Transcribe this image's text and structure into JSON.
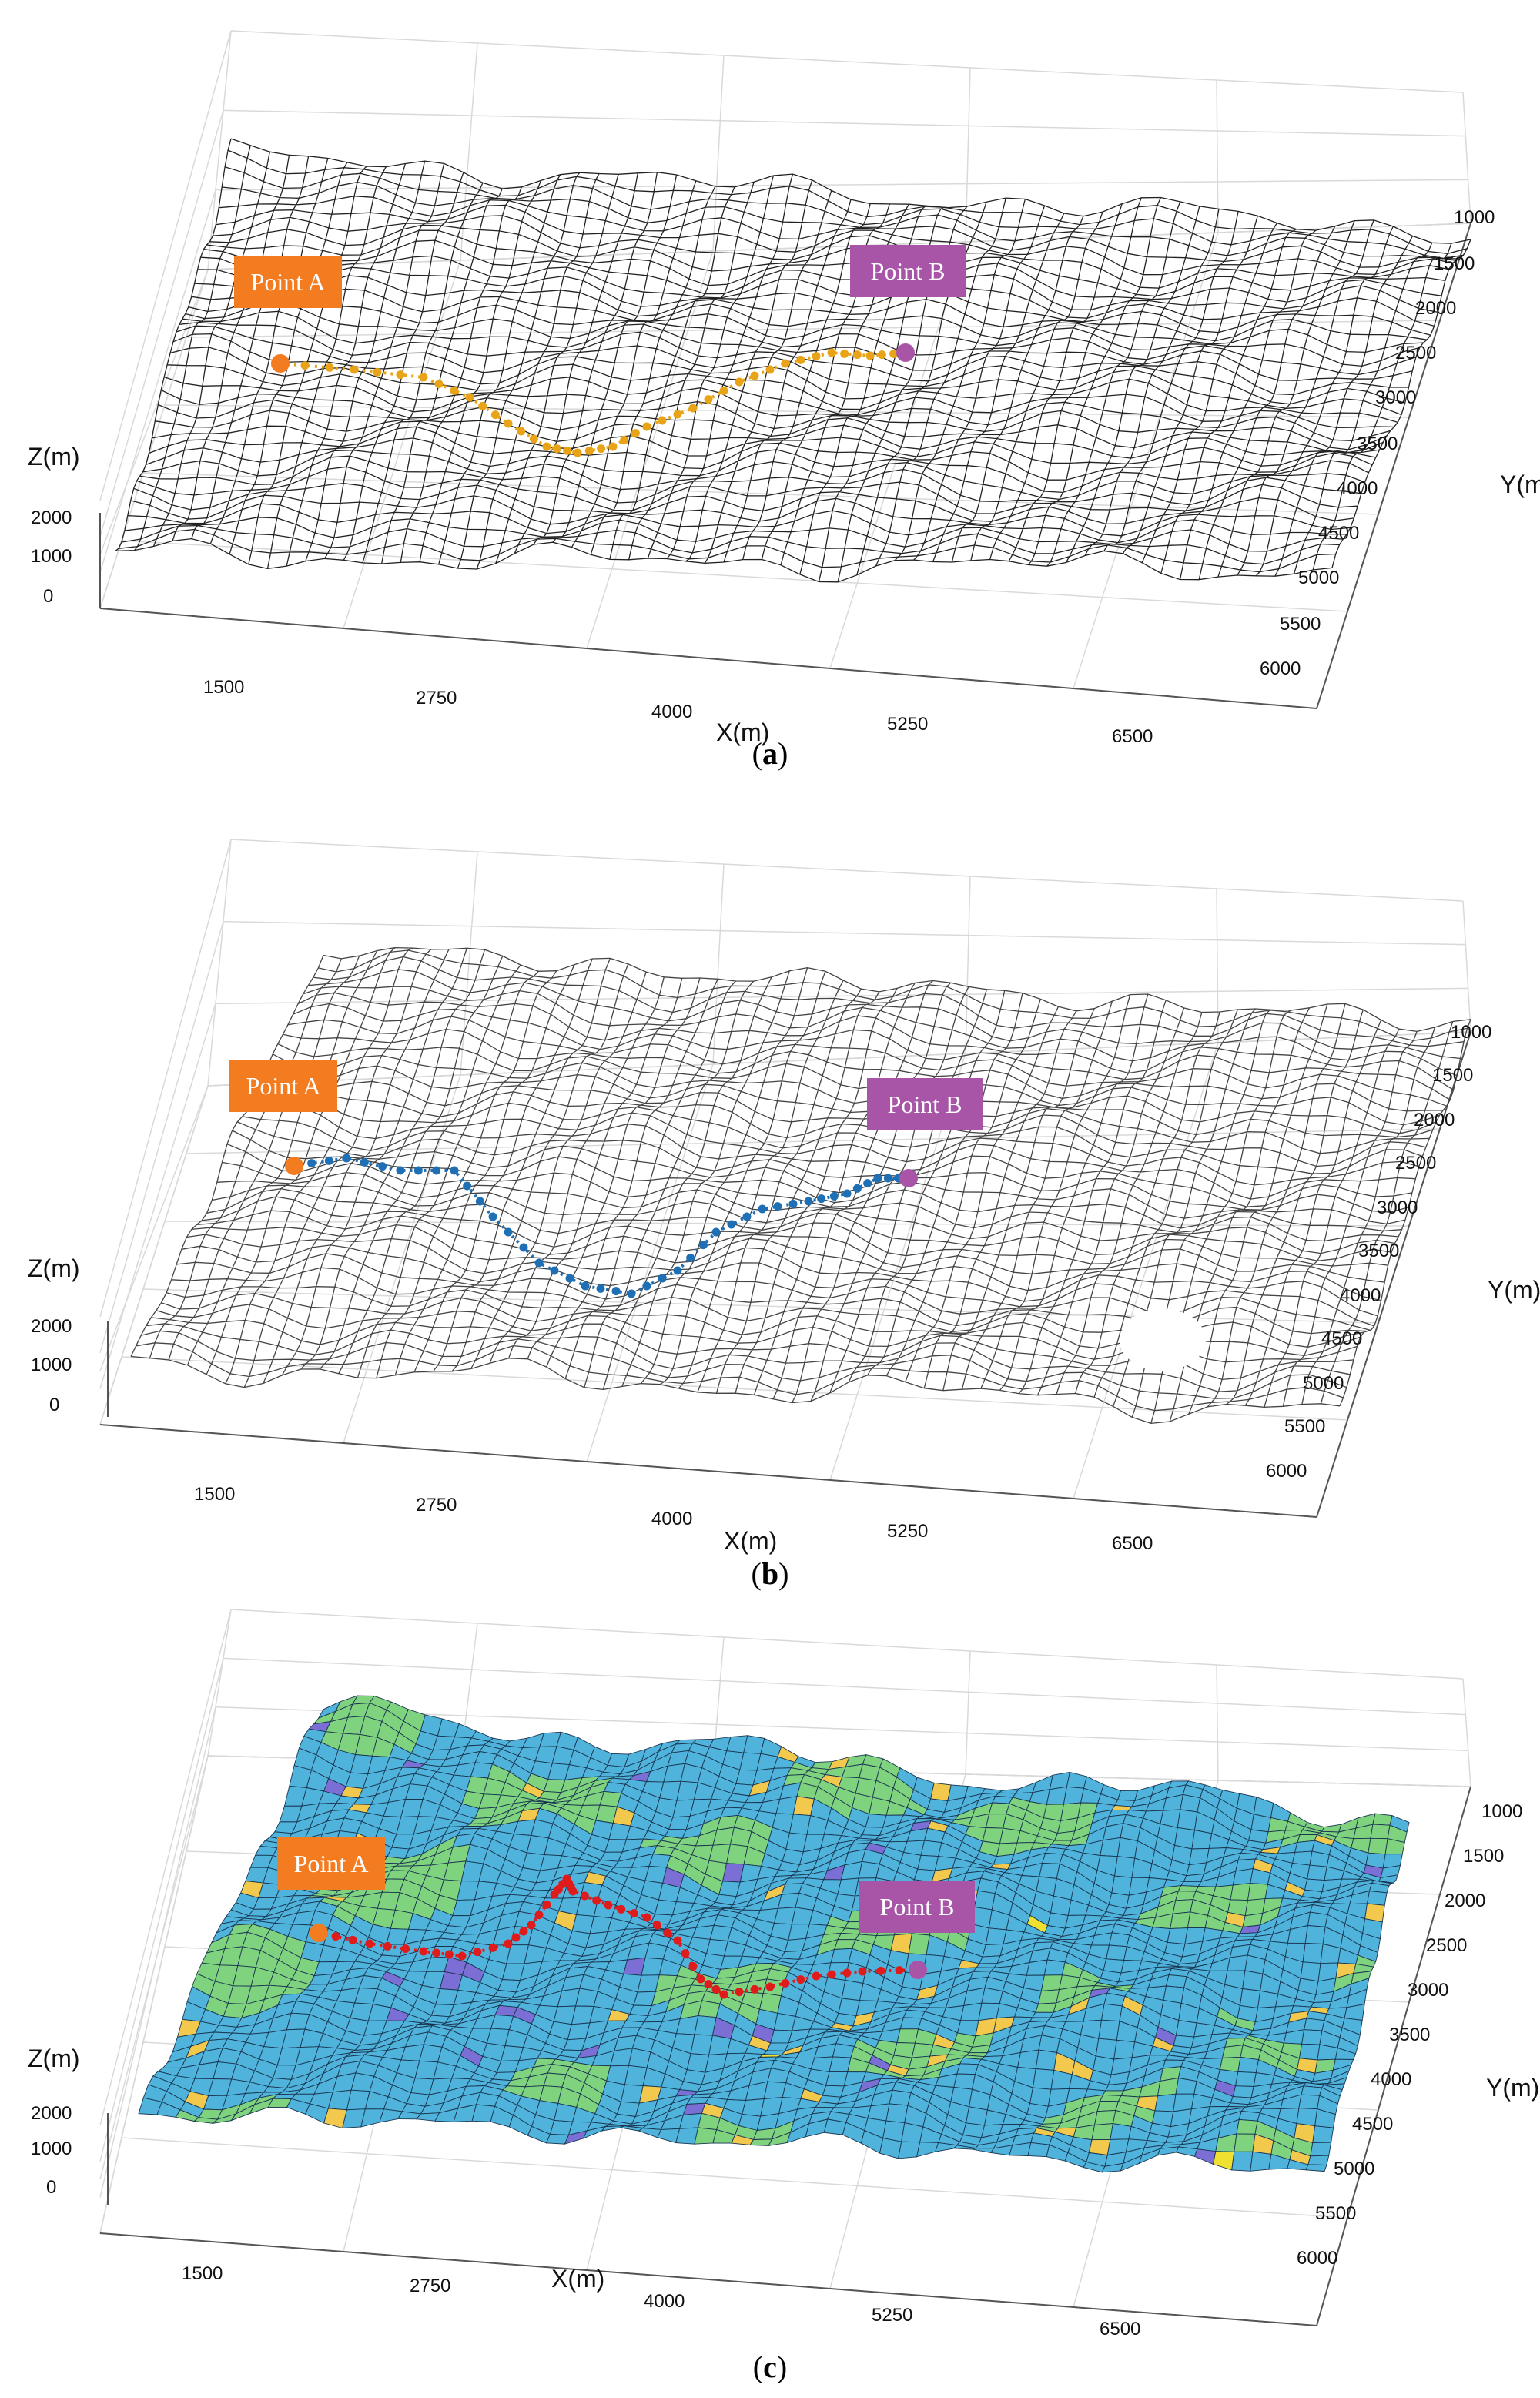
{
  "chart_data": [
    {
      "type": "surface",
      "panel": "a",
      "caption_letter": "a",
      "xlabel": "X(m)",
      "ylabel": "Y(m)",
      "zlabel": "Z(m)",
      "x_ticks": [
        "1500",
        "2750",
        "4000",
        "5250",
        "6500"
      ],
      "y_ticks": [
        "1000",
        "1500",
        "2000",
        "2500",
        "3000",
        "3500",
        "4000",
        "4500",
        "5000",
        "5500",
        "6000"
      ],
      "z_ticks": [
        "2000",
        "1000",
        "0"
      ],
      "point_a_label": "Point A",
      "point_b_label": "Point B",
      "mesh_color": "#222222",
      "path_color": "#e8a317",
      "point_a_color": "#f47c20",
      "point_b_color": "#a855a8"
    },
    {
      "type": "surface",
      "panel": "b",
      "caption_letter": "b",
      "xlabel": "X(m)",
      "ylabel": "Y(m)",
      "zlabel": "Z(m)",
      "x_ticks": [
        "1500",
        "2750",
        "4000",
        "5250",
        "6500"
      ],
      "y_ticks": [
        "1000",
        "1500",
        "2000",
        "2500",
        "3000",
        "3500",
        "4000",
        "4500",
        "5000",
        "5500",
        "6000"
      ],
      "z_ticks": [
        "2000",
        "1000",
        "0"
      ],
      "point_a_label": "Point A",
      "point_b_label": "Point B",
      "mesh_color": "#444444",
      "path_color": "#1f6fb5",
      "point_a_color": "#f47c20",
      "point_b_color": "#a855a8"
    },
    {
      "type": "surface",
      "panel": "c",
      "caption_letter": "c",
      "xlabel": "X(m)",
      "ylabel": "Y(m)",
      "zlabel": "Z(m)",
      "x_ticks": [
        "1500",
        "2750",
        "4000",
        "5250",
        "6500"
      ],
      "y_ticks": [
        "1000",
        "1500",
        "2000",
        "2500",
        "3000",
        "3500",
        "4000",
        "4500",
        "5000",
        "5500",
        "6000"
      ],
      "z_ticks": [
        "2000",
        "1000",
        "0"
      ],
      "point_a_label": "Point A",
      "point_b_label": "Point B",
      "mesh_color": "#1a3550",
      "surface_color": "#4fb3dc",
      "patch_colors": [
        "#7fd37f",
        "#f2c94c",
        "#7b6fd6",
        "#f0e130"
      ],
      "path_color": "#e01b1b",
      "point_a_color": "#f47c20",
      "point_b_color": "#a855a8"
    }
  ]
}
